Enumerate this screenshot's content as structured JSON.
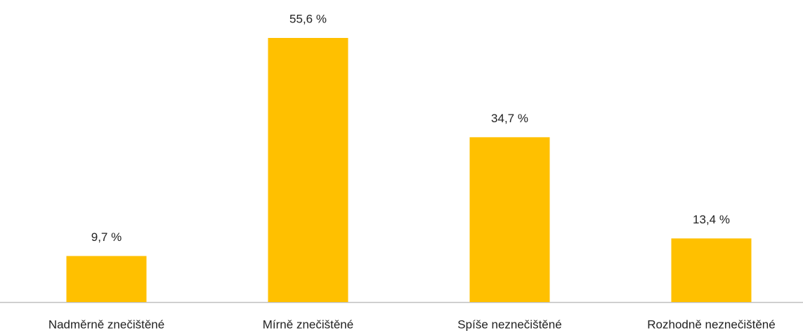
{
  "chart_data": {
    "type": "bar",
    "categories": [
      "Nadměrně znečištěné",
      "Mírně znečištěné",
      "Spíše neznečištěné",
      "Rozhodně neznečištěné"
    ],
    "values": [
      9.7,
      55.6,
      34.7,
      13.4
    ],
    "value_labels": [
      "9,7 %",
      "55,6 %",
      "34,7 %",
      "13,4 %"
    ],
    "color": "#ffc000"
  }
}
